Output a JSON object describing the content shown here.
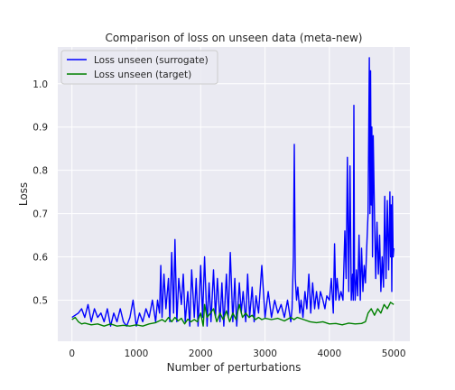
{
  "chart_data": {
    "type": "line",
    "title": "Comparison of loss on unseen data (meta-new)",
    "xlabel": "Number of perturbations",
    "ylabel": "Loss",
    "xlim": [
      -220,
      5250
    ],
    "ylim": [
      0.405,
      1.085
    ],
    "xticks": [
      0,
      1000,
      2000,
      3000,
      4000,
      5000
    ],
    "yticks": [
      0.5,
      0.6,
      0.7,
      0.8,
      0.9,
      1.0
    ],
    "xtick_labels": [
      "0",
      "1000",
      "2000",
      "3000",
      "4000",
      "5000"
    ],
    "ytick_labels": [
      "0.5",
      "0.6",
      "0.7",
      "0.8",
      "0.9",
      "1.0"
    ],
    "grid": true,
    "legend_position": "top-left",
    "background_color": "#eaeaf2",
    "grid_color": "#ffffff",
    "series": [
      {
        "name": "Loss unseen (surrogate)",
        "color": "#0000ff",
        "x": [
          0,
          100,
          150,
          200,
          250,
          300,
          350,
          400,
          450,
          500,
          550,
          600,
          650,
          700,
          750,
          800,
          850,
          900,
          950,
          1000,
          1050,
          1100,
          1150,
          1200,
          1250,
          1300,
          1330,
          1360,
          1380,
          1400,
          1430,
          1460,
          1500,
          1520,
          1550,
          1580,
          1600,
          1630,
          1660,
          1700,
          1730,
          1760,
          1800,
          1830,
          1860,
          1900,
          1930,
          1960,
          2000,
          2030,
          2060,
          2100,
          2130,
          2160,
          2200,
          2230,
          2260,
          2300,
          2330,
          2360,
          2400,
          2430,
          2460,
          2500,
          2530,
          2560,
          2600,
          2630,
          2660,
          2700,
          2730,
          2760,
          2800,
          2830,
          2860,
          2900,
          2950,
          3000,
          3050,
          3100,
          3150,
          3200,
          3250,
          3300,
          3350,
          3400,
          3420,
          3440,
          3455,
          3470,
          3490,
          3510,
          3540,
          3560,
          3590,
          3620,
          3650,
          3680,
          3710,
          3740,
          3770,
          3800,
          3830,
          3860,
          3900,
          3930,
          3960,
          4000,
          4030,
          4060,
          4080,
          4100,
          4120,
          4150,
          4180,
          4210,
          4240,
          4260,
          4280,
          4300,
          4320,
          4340,
          4360,
          4370,
          4380,
          4390,
          4400,
          4420,
          4440,
          4460,
          4480,
          4500,
          4520,
          4540,
          4560,
          4580,
          4600,
          4620,
          4630,
          4640,
          4650,
          4660,
          4670,
          4680,
          4700,
          4720,
          4740,
          4760,
          4780,
          4800,
          4820,
          4840,
          4860,
          4880,
          4900,
          4920,
          4940,
          4950,
          4960,
          4970,
          4980,
          4990,
          5000
        ],
        "values": [
          0.46,
          0.47,
          0.48,
          0.46,
          0.49,
          0.45,
          0.48,
          0.46,
          0.47,
          0.45,
          0.48,
          0.44,
          0.47,
          0.45,
          0.48,
          0.45,
          0.44,
          0.46,
          0.5,
          0.44,
          0.47,
          0.45,
          0.48,
          0.46,
          0.5,
          0.45,
          0.5,
          0.47,
          0.58,
          0.46,
          0.56,
          0.48,
          0.55,
          0.45,
          0.61,
          0.47,
          0.64,
          0.45,
          0.55,
          0.49,
          0.56,
          0.45,
          0.52,
          0.44,
          0.57,
          0.46,
          0.55,
          0.44,
          0.58,
          0.46,
          0.6,
          0.44,
          0.54,
          0.45,
          0.57,
          0.46,
          0.55,
          0.45,
          0.54,
          0.44,
          0.56,
          0.46,
          0.61,
          0.45,
          0.55,
          0.44,
          0.54,
          0.47,
          0.52,
          0.45,
          0.56,
          0.46,
          0.53,
          0.45,
          0.51,
          0.47,
          0.58,
          0.46,
          0.52,
          0.46,
          0.5,
          0.47,
          0.49,
          0.46,
          0.5,
          0.45,
          0.48,
          0.6,
          0.86,
          0.55,
          0.5,
          0.53,
          0.47,
          0.5,
          0.46,
          0.52,
          0.48,
          0.56,
          0.47,
          0.54,
          0.48,
          0.52,
          0.48,
          0.52,
          0.5,
          0.48,
          0.51,
          0.5,
          0.55,
          0.47,
          0.63,
          0.5,
          0.55,
          0.5,
          0.52,
          0.5,
          0.66,
          0.55,
          0.83,
          0.52,
          0.81,
          0.5,
          0.56,
          0.5,
          0.95,
          0.55,
          0.5,
          0.57,
          0.51,
          0.65,
          0.5,
          0.62,
          0.52,
          0.58,
          0.54,
          0.62,
          0.7,
          1.06,
          0.7,
          1.03,
          0.72,
          0.9,
          0.6,
          0.88,
          0.7,
          0.55,
          0.68,
          0.56,
          0.65,
          0.52,
          0.6,
          0.53,
          0.74,
          0.55,
          0.73,
          0.57,
          0.75,
          0.6,
          0.72,
          0.52,
          0.74,
          0.6,
          0.62
        ]
      },
      {
        "name": "Loss unseen (target)",
        "color": "#008000",
        "x": [
          0,
          50,
          100,
          150,
          200,
          300,
          400,
          500,
          600,
          700,
          800,
          900,
          1000,
          1100,
          1200,
          1300,
          1400,
          1450,
          1500,
          1550,
          1600,
          1650,
          1700,
          1750,
          1800,
          1850,
          1900,
          1950,
          2000,
          2040,
          2060,
          2100,
          2150,
          2200,
          2250,
          2300,
          2350,
          2400,
          2450,
          2500,
          2550,
          2600,
          2650,
          2700,
          2750,
          2800,
          2850,
          2900,
          2950,
          3000,
          3100,
          3200,
          3300,
          3400,
          3450,
          3500,
          3600,
          3700,
          3800,
          3900,
          4000,
          4100,
          4200,
          4300,
          4400,
          4500,
          4560,
          4600,
          4650,
          4700,
          4750,
          4800,
          4850,
          4900,
          4950,
          5000
        ],
        "values": [
          0.455,
          0.46,
          0.45,
          0.445,
          0.447,
          0.443,
          0.445,
          0.44,
          0.445,
          0.44,
          0.442,
          0.44,
          0.443,
          0.44,
          0.445,
          0.448,
          0.455,
          0.45,
          0.46,
          0.45,
          0.46,
          0.452,
          0.458,
          0.445,
          0.456,
          0.45,
          0.455,
          0.45,
          0.47,
          0.44,
          0.49,
          0.46,
          0.47,
          0.48,
          0.45,
          0.47,
          0.455,
          0.475,
          0.45,
          0.47,
          0.455,
          0.49,
          0.46,
          0.47,
          0.46,
          0.465,
          0.455,
          0.46,
          0.455,
          0.458,
          0.455,
          0.458,
          0.452,
          0.46,
          0.455,
          0.46,
          0.455,
          0.45,
          0.448,
          0.45,
          0.445,
          0.446,
          0.443,
          0.447,
          0.445,
          0.446,
          0.45,
          0.47,
          0.48,
          0.465,
          0.48,
          0.47,
          0.49,
          0.48,
          0.495,
          0.49
        ]
      }
    ]
  }
}
